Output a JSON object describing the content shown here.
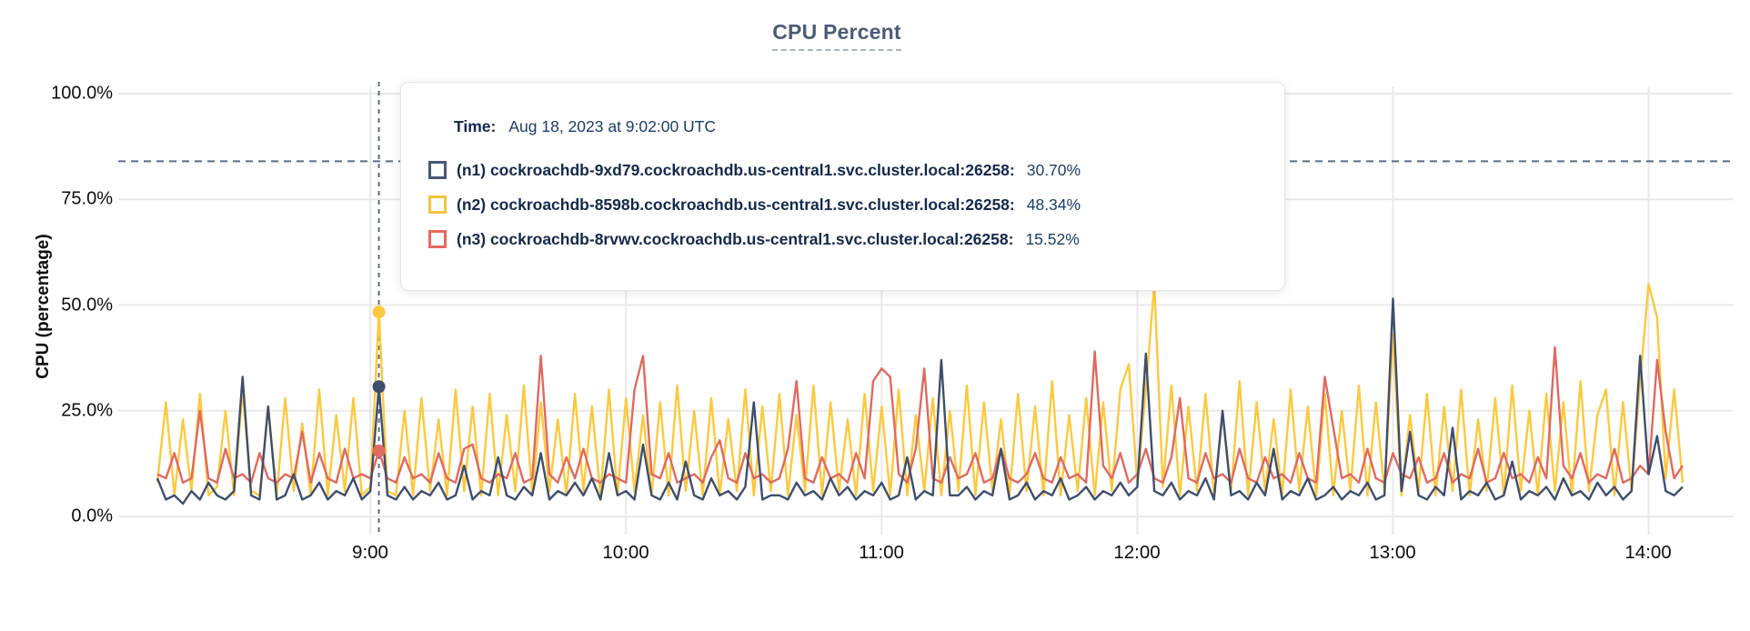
{
  "title": "CPU Percent",
  "yaxis_title": "CPU (percentage)",
  "tooltip": {
    "time_label": "Time:",
    "time_value": "Aug 18, 2023 at 9:02:00 UTC",
    "series": [
      {
        "name": "(n1) cockroachdb-9xd79.cockroachdb.us-central1.svc.cluster.local:26258:",
        "value": "30.70%",
        "color": "#475872"
      },
      {
        "name": "(n2) cockroachdb-8598b.cockroachdb.us-central1.svc.cluster.local:26258:",
        "value": "48.34%",
        "color": "#f4c53d"
      },
      {
        "name": "(n3) cockroachdb-8rvwv.cockroachdb.us-central1.svc.cluster.local:26258:",
        "value": "15.52%",
        "color": "#e5695f"
      }
    ]
  },
  "colors": {
    "grid": "#e9e9e9",
    "dashed_guides": "#5b6e85",
    "navy": "#3f4e6d",
    "yellow": "#fcc93f",
    "red": "#e06a60"
  },
  "chart_data": {
    "type": "line",
    "title": "CPU Percent",
    "xlabel": "",
    "ylabel": "CPU (percentage)",
    "ylim": [
      0,
      100
    ],
    "grid": true,
    "legend_position": "tooltip-overlay",
    "y_tick_labels": [
      "100.0%",
      "75.0%",
      "50.0%",
      "25.0%",
      "0.0%"
    ],
    "y_tick_values": [
      100,
      75,
      50,
      25,
      0
    ],
    "x_tick_labels": [
      "9:00",
      "10:00",
      "11:00",
      "12:00",
      "13:00",
      "14:00"
    ],
    "x_start_time": "8:10",
    "x_end_time": "14:08",
    "x_step_minutes": 2,
    "threshold_percent": 84,
    "hover": {
      "time": "Aug 18, 2023 at 9:02:00 UTC",
      "index": 26,
      "values": {
        "n1": 30.7,
        "n2": 48.34,
        "n3": 15.52
      }
    },
    "hour_tick_indices": [
      25,
      55,
      85,
      115,
      145,
      175
    ],
    "series": [
      {
        "name": "(n2) cockroachdb-8598b.cockroachdb.us-central1.svc.cluster.local:26258",
        "color": "#fcc93f",
        "values": [
          8,
          27,
          5,
          23,
          6,
          29,
          5,
          7,
          25,
          5,
          30,
          6,
          5,
          26,
          5,
          28,
          6,
          22,
          5,
          30,
          5,
          24,
          6,
          28,
          5,
          7,
          48.34,
          6,
          5,
          25,
          5,
          28,
          6,
          23,
          5,
          30,
          6,
          26,
          5,
          29,
          5,
          24,
          6,
          31,
          5,
          27,
          6,
          23,
          5,
          29,
          6,
          26,
          5,
          30,
          5,
          28,
          6,
          24,
          5,
          27,
          5,
          31,
          6,
          25,
          5,
          28,
          5,
          23,
          6,
          30,
          5,
          26,
          6,
          29,
          5,
          24,
          6,
          31,
          5,
          27,
          6,
          23,
          5,
          29,
          6,
          26,
          5,
          30,
          5,
          24,
          6,
          28,
          5,
          25,
          6,
          31,
          5,
          27,
          6,
          23,
          5,
          29,
          6,
          26,
          5,
          32,
          5,
          24,
          6,
          28,
          5,
          27,
          6,
          30,
          36,
          8,
          30,
          55,
          7,
          31,
          5,
          26,
          6,
          29,
          5,
          24,
          6,
          32,
          5,
          27,
          6,
          23,
          5,
          30,
          6,
          26,
          5,
          29,
          5,
          25,
          6,
          31,
          5,
          27,
          6,
          43,
          5,
          24,
          6,
          29,
          5,
          26,
          6,
          30,
          5,
          23,
          6,
          28,
          5,
          31,
          6,
          25,
          5,
          29,
          6,
          27,
          5,
          32,
          6,
          24,
          30,
          5,
          27,
          6,
          32,
          55,
          47,
          9,
          30,
          8
        ]
      },
      {
        "name": "(n3) cockroachdb-8rvwv.cockroachdb.us-central1.svc.cluster.local:26258",
        "color": "#e06a60",
        "values": [
          10,
          9,
          15,
          8,
          9,
          25,
          9,
          8,
          16,
          9,
          10,
          8,
          15,
          9,
          8,
          10,
          9,
          20,
          8,
          15,
          9,
          8,
          16,
          9,
          10,
          9,
          15.52,
          9,
          8,
          14,
          9,
          10,
          8,
          15,
          9,
          8,
          16,
          17,
          9,
          8,
          10,
          9,
          15,
          8,
          9,
          38,
          10,
          8,
          14,
          9,
          16,
          9,
          8,
          10,
          9,
          8,
          30,
          38,
          10,
          9,
          15,
          8,
          9,
          10,
          8,
          14,
          18,
          9,
          8,
          15,
          9,
          10,
          8,
          9,
          16,
          32,
          9,
          8,
          14,
          9,
          10,
          8,
          15,
          9,
          32,
          35,
          33,
          10,
          8,
          16,
          35,
          9,
          8,
          14,
          9,
          10,
          15,
          8,
          9,
          16,
          9,
          8,
          10,
          15,
          9,
          8,
          14,
          9,
          10,
          8,
          39,
          12,
          9,
          15,
          8,
          10,
          16,
          9,
          8,
          14,
          28,
          9,
          8,
          15,
          9,
          10,
          8,
          16,
          9,
          8,
          14,
          9,
          10,
          8,
          15,
          9,
          8,
          33,
          21,
          9,
          10,
          8,
          16,
          9,
          8,
          15,
          10,
          9,
          14,
          8,
          9,
          15,
          8,
          10,
          9,
          16,
          8,
          9,
          15,
          9,
          10,
          8,
          14,
          9,
          40,
          12,
          9,
          15,
          8,
          10,
          9,
          16,
          8,
          9,
          12,
          10,
          37,
          20,
          9,
          12
        ]
      },
      {
        "name": "(n1) cockroachdb-9xd79.cockroachdb.us-central1.svc.cluster.local:26258",
        "color": "#3f4e6d",
        "values": [
          9,
          4,
          5,
          3,
          6,
          4,
          8,
          5,
          4,
          6,
          33,
          5,
          4,
          26,
          4,
          5,
          10,
          4,
          5,
          8,
          4,
          6,
          5,
          9,
          4,
          6,
          30.7,
          5,
          4,
          7,
          4,
          6,
          5,
          8,
          4,
          5,
          12,
          4,
          6,
          5,
          14,
          5,
          4,
          7,
          5,
          15,
          4,
          6,
          5,
          8,
          5,
          9,
          4,
          15,
          5,
          6,
          4,
          17,
          5,
          4,
          8,
          4,
          13,
          5,
          4,
          9,
          5,
          6,
          4,
          7,
          27,
          4,
          5,
          5,
          4,
          8,
          5,
          6,
          4,
          9,
          5,
          7,
          4,
          6,
          5,
          8,
          4,
          5,
          14,
          4,
          6,
          5,
          37,
          5,
          5,
          7,
          4,
          6,
          5,
          16,
          4,
          5,
          8,
          4,
          6,
          5,
          9,
          4,
          5,
          7,
          4,
          6,
          5,
          8,
          5,
          7,
          38.5,
          6,
          5,
          8,
          4,
          6,
          5,
          9,
          4,
          25,
          5,
          6,
          4,
          8,
          5,
          16,
          4,
          6,
          5,
          9,
          4,
          5,
          7,
          4,
          6,
          5,
          8,
          4,
          5,
          51.5,
          6,
          20,
          5,
          4,
          7,
          5,
          21,
          4,
          6,
          5,
          8,
          4,
          5,
          13,
          4,
          6,
          5,
          7,
          4,
          9,
          5,
          6,
          4,
          8,
          5,
          7,
          4,
          6,
          38,
          10,
          19,
          6,
          5,
          7
        ]
      }
    ]
  }
}
